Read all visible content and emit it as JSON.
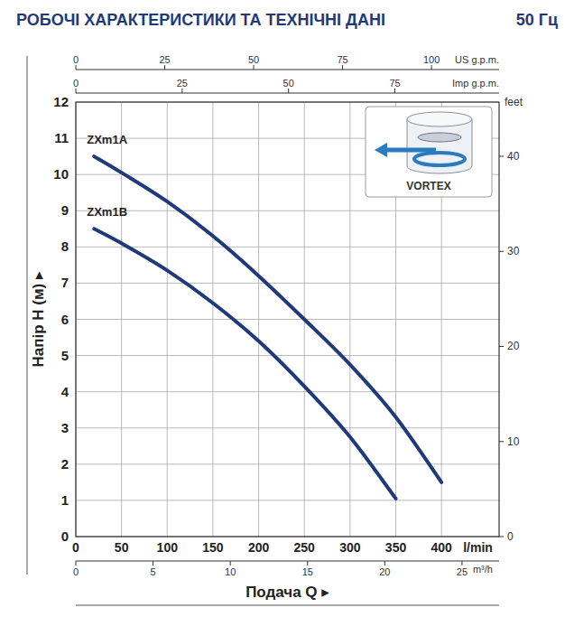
{
  "chart_data": {
    "type": "line",
    "title": "РОБОЧІ ХАРАКТЕРИСТИКИ ТА ТЕХНІЧНІ ДАНІ",
    "subtitle": "50 Гц",
    "xlabel": "Подача Q ▸",
    "ylabel": "Напір H (м) ▸",
    "x_unit": "l/min",
    "x2_unit": "m³/h",
    "x3_unit": "US g.p.m.",
    "x4_unit": "Imp g.p.m.",
    "y2_unit": "feet",
    "inset_label": "VORTEX",
    "x": [
      20,
      50,
      100,
      150,
      200,
      250,
      300,
      350,
      400
    ],
    "series": [
      {
        "name": "ZXm1A",
        "color": "#1f3a7a",
        "values": [
          10.5,
          10.05,
          9.25,
          8.3,
          7.2,
          6.0,
          4.75,
          3.3,
          1.5
        ]
      },
      {
        "name": "ZXm1B",
        "color": "#1f3a7a",
        "values": [
          8.5,
          8.1,
          7.35,
          6.45,
          5.4,
          4.15,
          2.75,
          1.05,
          null
        ]
      }
    ],
    "xlim": [
      0,
      463
    ],
    "xticks": [
      0,
      50,
      100,
      150,
      200,
      250,
      300,
      350,
      400
    ],
    "ylim": [
      0,
      12
    ],
    "yticks": [
      0,
      1,
      2,
      3,
      4,
      5,
      6,
      7,
      8,
      9,
      10,
      11,
      12
    ],
    "y2lim": [
      0,
      45.7
    ],
    "y2ticks": [
      0,
      10,
      20,
      30,
      40
    ],
    "x2lim": [
      0,
      27.4
    ],
    "x2ticks": [
      0,
      5,
      10,
      15,
      20,
      25
    ],
    "x3lim": [
      0,
      119
    ],
    "x3ticks": [
      0,
      25,
      50,
      75,
      100
    ],
    "x4lim": [
      0,
      99.5
    ],
    "x4ticks": [
      0,
      25,
      50,
      75
    ],
    "grid": true
  }
}
